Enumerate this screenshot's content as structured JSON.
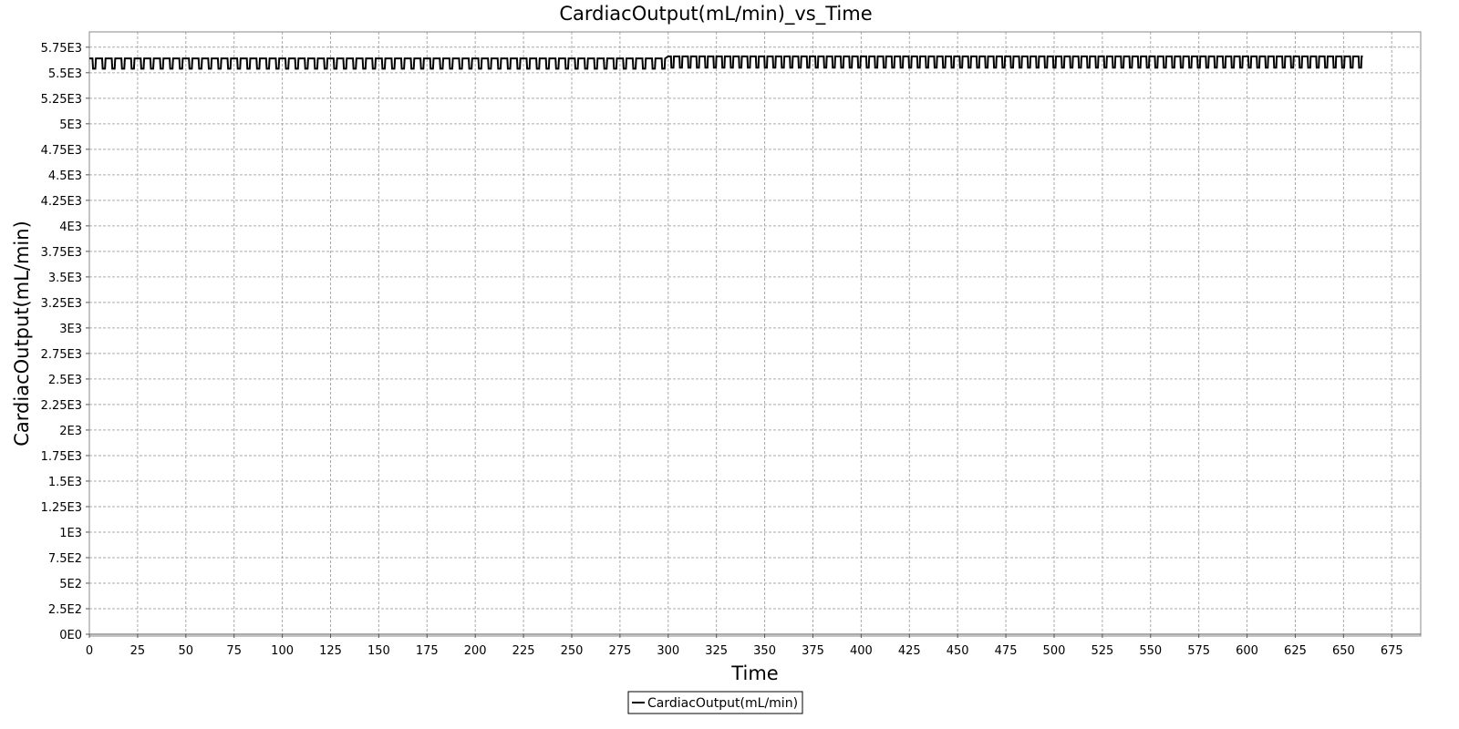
{
  "chart_data": {
    "type": "line",
    "title": "CardiacOutput(mL/min)_vs_Time",
    "xlabel": "Time",
    "ylabel": "CardiacOutput(mL/min)",
    "xlim": [
      0,
      690
    ],
    "ylim": [
      0,
      5900
    ],
    "x_ticks": [
      0,
      25,
      50,
      75,
      100,
      125,
      150,
      175,
      200,
      225,
      250,
      275,
      300,
      325,
      350,
      375,
      400,
      425,
      450,
      475,
      500,
      525,
      550,
      575,
      600,
      625,
      650,
      675
    ],
    "x_tick_labels": [
      "0",
      "25",
      "50",
      "75",
      "100",
      "125",
      "150",
      "175",
      "200",
      "225",
      "250",
      "275",
      "300",
      "325",
      "350",
      "375",
      "400",
      "425",
      "450",
      "475",
      "500",
      "525",
      "550",
      "575",
      "600",
      "625",
      "650",
      "675"
    ],
    "y_ticks": [
      0,
      250,
      500,
      750,
      1000,
      1250,
      1500,
      1750,
      2000,
      2250,
      2500,
      2750,
      3000,
      3250,
      3500,
      3750,
      4000,
      4250,
      4500,
      4750,
      5000,
      5250,
      5500,
      5750
    ],
    "y_tick_labels": [
      "0E0",
      "2.5E2",
      "5E2",
      "7.5E2",
      "1E3",
      "1.25E3",
      "1.5E3",
      "1.75E3",
      "2E3",
      "2.25E3",
      "2.5E3",
      "2.75E3",
      "3E3",
      "3.25E3",
      "3.5E3",
      "3.75E3",
      "4E3",
      "4.25E3",
      "4.5E3",
      "4.75E3",
      "5E3",
      "5.25E3",
      "5.5E3",
      "5.75E3"
    ],
    "grid": true,
    "legend_position": "bottom-center",
    "series": [
      {
        "name": "CardiacOutput(mL/min)",
        "color": "#000000",
        "segments": [
          {
            "x_start": 0,
            "x_end": 300,
            "period": 5.0,
            "high": 5640,
            "low": 5540
          },
          {
            "x_start": 300,
            "x_end": 660,
            "period": 4.4,
            "high": 5660,
            "low": 5550
          }
        ]
      }
    ]
  }
}
